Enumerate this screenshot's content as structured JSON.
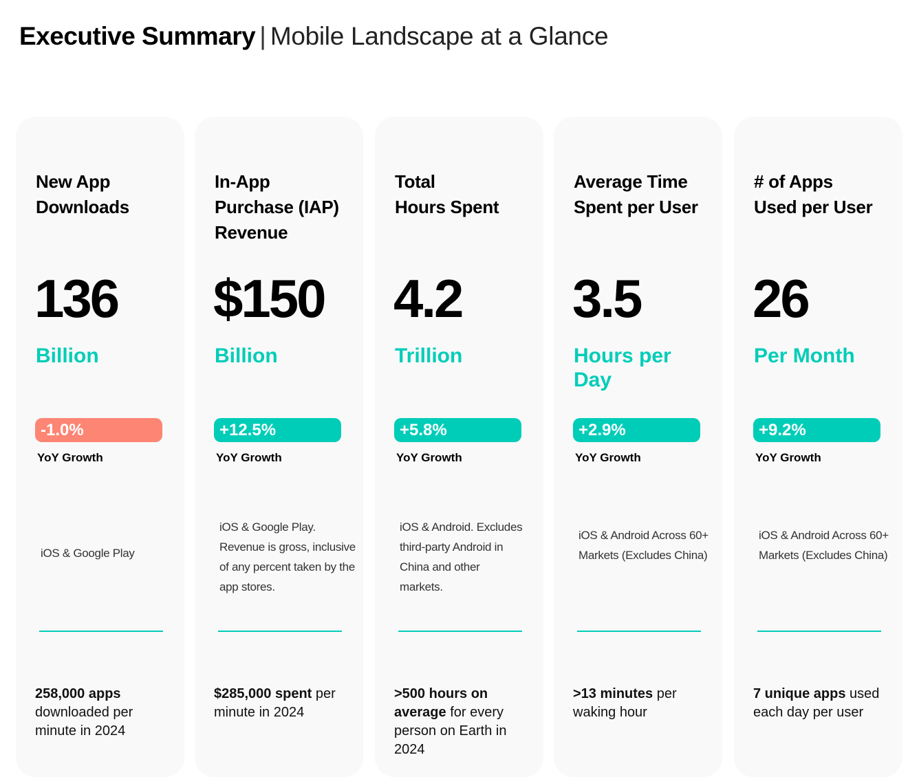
{
  "header": {
    "title": "Executive Summary",
    "separator": "|",
    "subtitle": "Mobile Landscape at a Glance"
  },
  "colors": {
    "accent": "#00cdb8",
    "negative": "#fd8574",
    "card_bg": "#f9f9f9"
  },
  "cards": [
    {
      "title": "New App Downloads",
      "value": "136",
      "unit": "Billion",
      "growth": "-1.0%",
      "growth_color": "#fd8574",
      "growth_label": "YoY Growth",
      "description": "iOS & Google Play",
      "footer_bold": "258,000 apps",
      "footer_text": "downloaded per minute in 2024"
    },
    {
      "title": "In-App Purchase (IAP) Revenue",
      "value": "$150",
      "unit": "Billion",
      "growth": "+12.5%",
      "growth_color": "#00cdb8",
      "growth_label": "YoY Growth",
      "description": "iOS & Google Play. Revenue is gross, inclusive of any percent taken by the app stores.",
      "footer_bold": "$285,000 spent",
      "footer_text": "per minute in 2024"
    },
    {
      "title": "Total Hours Spent",
      "value": "4.2",
      "unit": "Trillion",
      "growth": "+5.8%",
      "growth_color": "#00cdb8",
      "growth_label": "YoY Growth",
      "description": "iOS & Android. Excludes third-party Android in China and other markets.",
      "footer_bold": ">500 hours on average",
      "footer_text": "for every person on Earth in 2024"
    },
    {
      "title": "Average Time Spent per User",
      "value": "3.5",
      "unit": "Hours per Day",
      "growth": "+2.9%",
      "growth_color": "#00cdb8",
      "growth_label": "YoY Growth",
      "description": "iOS & Android Across 60+ Markets (Excludes China)",
      "footer_bold": ">13 minutes",
      "footer_text": "per waking hour"
    },
    {
      "title": "# of Apps Used per User",
      "value": "26",
      "unit": "Per Month",
      "growth": "+9.2%",
      "growth_color": "#00cdb8",
      "growth_label": "YoY Growth",
      "description": "iOS & Android Across 60+ Markets (Excludes China)",
      "footer_bold": "7 unique apps",
      "footer_text": "used each day per user"
    }
  ]
}
